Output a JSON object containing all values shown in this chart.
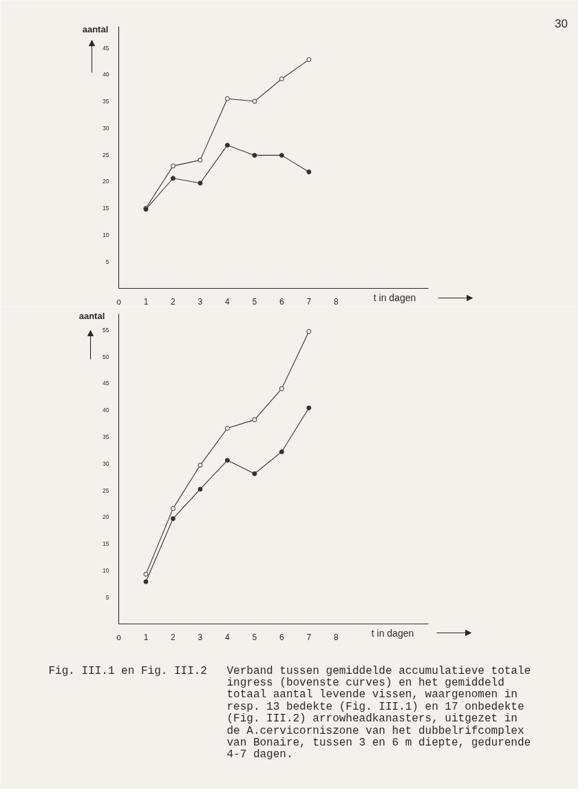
{
  "chart_data": [
    {
      "type": "line",
      "x": [
        1,
        2,
        3,
        4,
        5,
        6,
        7
      ],
      "xlim": [
        0,
        11.4
      ],
      "xticks": [
        {
          "value": 0,
          "label": "o"
        },
        1,
        2,
        3,
        4,
        5,
        6,
        7,
        8
      ],
      "ylim": [
        0,
        49
      ],
      "yticks": [
        5,
        10,
        15,
        20,
        25,
        30,
        35,
        40,
        45
      ],
      "xlabel": "t in dagen",
      "ylabel": "aantal",
      "marker": "circle",
      "line_style": "solid",
      "series": [
        {
          "color": "#333333",
          "values": [
            15,
            22.9,
            24,
            35.5,
            35,
            39.2,
            42.8
          ]
        },
        {
          "color": "#333333",
          "values": [
            14.8,
            20.6,
            19.7,
            26.8,
            24.9,
            24.9,
            21.8
          ]
        }
      ],
      "annotations": [
        "30"
      ]
    },
    {
      "type": "line",
      "x": [
        1,
        2,
        3,
        4,
        5,
        6,
        7
      ],
      "xlim": [
        0,
        11.4
      ],
      "xticks": [
        {
          "value": 0,
          "label": "o"
        },
        1,
        2,
        3,
        4,
        5,
        6,
        7,
        8
      ],
      "ylim": [
        0,
        58
      ],
      "yticks": [
        5,
        10,
        15,
        20,
        25,
        30,
        35,
        40,
        45,
        50,
        55
      ],
      "xlabel": "t in dagen",
      "ylabel": "aantal",
      "marker": "circle",
      "line_style": "solid",
      "series": [
        {
          "color": "#333333",
          "values": [
            9.3,
            21.6,
            29.7,
            36.6,
            38.2,
            44,
            54.7
          ]
        },
        {
          "color": "#333333",
          "values": [
            7.9,
            19.7,
            25.2,
            30.6,
            28.1,
            32.2,
            40.4
          ]
        }
      ],
      "annotations": [
        "Fig. III.1 en Fig. III.2",
        "Verband tussen gemiddelde accumulatieve totale ingress (bovenste curves) en het gemiddeld totaal aantal levende vissen, waargenomen in resp. 13 bedekte (Fig. III.1) en 17 onbedekte (Fig. III.2) arrowheadkanasters, uitgezet in de A.cervicorniszone van het dubbelrifcomplex van Bonaire, tussen 3 en 6 m diepte, gedurende 4-7 dagen."
      ]
    }
  ]
}
